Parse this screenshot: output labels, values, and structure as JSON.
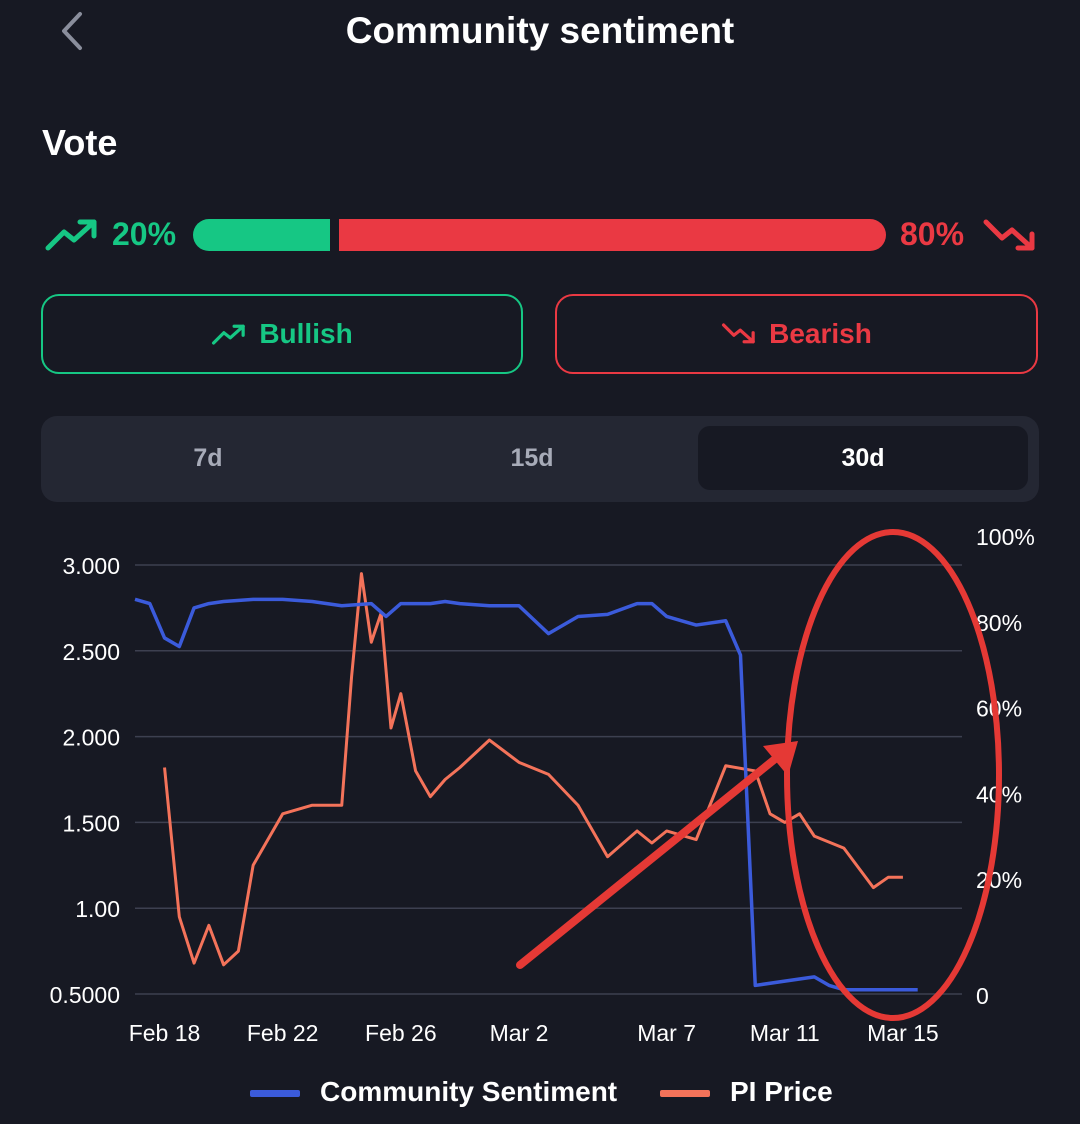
{
  "header": {
    "title": "Community sentiment"
  },
  "vote": {
    "title": "Vote",
    "bullish_pct": "20%",
    "bearish_pct": "80%",
    "bullish_fraction": 0.2,
    "bullish_label": "Bullish",
    "bearish_label": "Bearish"
  },
  "tabs": [
    {
      "label": "7d",
      "selected": false
    },
    {
      "label": "15d",
      "selected": false
    },
    {
      "label": "30d",
      "selected": true
    }
  ],
  "colors": {
    "bullish": "#16c784",
    "bearish": "#ea3943",
    "sentiment_line": "#3b5bdb",
    "price_line": "#f4735a",
    "annotation": "#e53935",
    "background": "#171923"
  },
  "icons": {
    "back": "chevron-left-icon",
    "bullish": "trending-up-icon",
    "bearish": "trending-down-icon"
  },
  "chart_data": {
    "type": "line",
    "title": "",
    "x_ticks": [
      "Feb 18",
      "Feb 22",
      "Feb 26",
      "Mar 2",
      "Mar 7",
      "Mar 11",
      "Mar 15"
    ],
    "y_left_ticks": [
      "3.000",
      "2.500",
      "2.000",
      "1.500",
      "1.00",
      "0.5000"
    ],
    "y_left_range": [
      0.5,
      3.0
    ],
    "y_right_ticks": [
      "100%",
      "80%",
      "60%",
      "40%",
      "20%",
      "0"
    ],
    "y_right_range": [
      0,
      100
    ],
    "grid": true,
    "legend_position": "bottom",
    "series": [
      {
        "name": "Community Sentiment",
        "axis": "right",
        "x": [
          "Feb 17",
          "Feb 17",
          "Feb 18",
          "Feb 18",
          "Feb 19",
          "Feb 19",
          "Feb 20",
          "Feb 21",
          "Feb 22",
          "Feb 23",
          "Feb 24",
          "Feb 25",
          "Feb 25",
          "Feb 26",
          "Feb 27",
          "Feb 27",
          "Feb 28",
          "Mar 1",
          "Mar 2",
          "Mar 3",
          "Mar 4",
          "Mar 5",
          "Mar 6",
          "Mar 6",
          "Mar 7",
          "Mar 8",
          "Mar 9",
          "Mar 9",
          "Mar 10",
          "Mar 11",
          "Mar 12",
          "Mar 12",
          "Mar 13",
          "Mar 13",
          "Mar 14",
          "Mar 14",
          "Mar 15",
          "Mar 15"
        ],
        "values": [
          92,
          91,
          83,
          81,
          90,
          91,
          91.5,
          92,
          92,
          91.5,
          90.5,
          91,
          88,
          91,
          91,
          91.5,
          91,
          90.5,
          90.5,
          84,
          88,
          88.5,
          91,
          91,
          88,
          86,
          87,
          79,
          2,
          3,
          4,
          2,
          1,
          1,
          1,
          1,
          1,
          1
        ]
      },
      {
        "name": "PI Price",
        "axis": "left",
        "x": [
          "Feb 18",
          "Feb 18",
          "Feb 19",
          "Feb 19",
          "Feb 20",
          "Feb 20",
          "Feb 21",
          "Feb 22",
          "Feb 23",
          "Feb 24",
          "Feb 24",
          "Feb 24",
          "Feb 25",
          "Feb 25",
          "Feb 25",
          "Feb 26",
          "Feb 26",
          "Feb 27",
          "Feb 27",
          "Feb 28",
          "Mar 1",
          "Mar 2",
          "Mar 3",
          "Mar 4",
          "Mar 5",
          "Mar 6",
          "Mar 6",
          "Mar 7",
          "Mar 8",
          "Mar 9",
          "Mar 10",
          "Mar 10",
          "Mar 11",
          "Mar 11",
          "Mar 12",
          "Mar 13",
          "Mar 14",
          "Mar 14",
          "Mar 15"
        ],
        "values": [
          1.82,
          0.95,
          0.68,
          0.9,
          0.67,
          0.75,
          1.25,
          1.55,
          1.6,
          1.6,
          2.35,
          2.95,
          2.55,
          2.72,
          2.05,
          2.25,
          1.8,
          1.65,
          1.75,
          1.82,
          1.98,
          1.85,
          1.78,
          1.6,
          1.3,
          1.45,
          1.38,
          1.45,
          1.4,
          1.83,
          1.8,
          1.55,
          1.5,
          1.55,
          1.42,
          1.35,
          1.12,
          1.18,
          1.18
        ]
      }
    ]
  },
  "annotations": [
    {
      "type": "ellipse",
      "label": "highlighted sentiment drop"
    },
    {
      "type": "arrow",
      "label": "pointer to circled area"
    }
  ]
}
